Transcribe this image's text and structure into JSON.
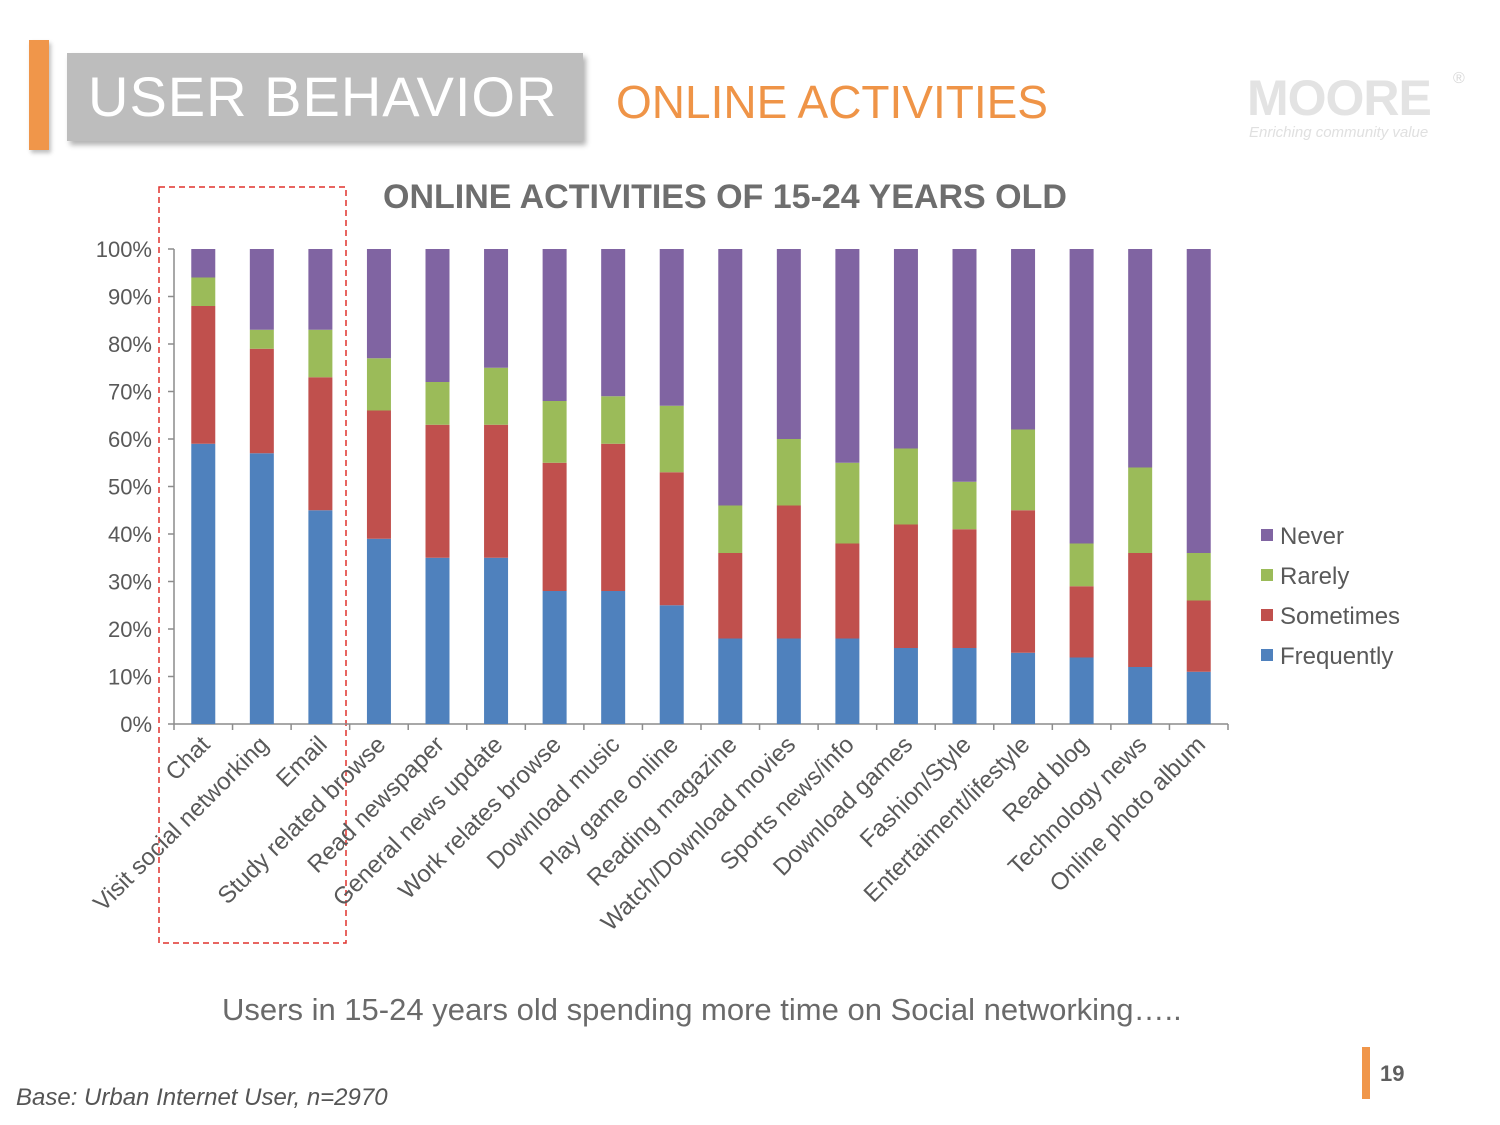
{
  "header": {
    "section_title": "USER BEHAVIOR",
    "subsection_title": "ONLINE ACTIVITIES"
  },
  "logo": {
    "word": "MOORE",
    "registered": "®",
    "tagline": "Enriching community value"
  },
  "colors": {
    "accent": "#f0964a",
    "frequently": "#4f81bd",
    "sometimes": "#c0504d",
    "rarely": "#9bbb59",
    "never": "#8064a2",
    "highlight": "#e0322d"
  },
  "chart_data": {
    "type": "bar",
    "stacked": true,
    "title": "ONLINE ACTIVITIES OF 15-24 YEARS OLD",
    "xlabel": "",
    "ylabel": "",
    "ylim": [
      0,
      100
    ],
    "yticks": [
      "0%",
      "10%",
      "20%",
      "30%",
      "40%",
      "50%",
      "60%",
      "70%",
      "80%",
      "90%",
      "100%"
    ],
    "legend_position": "right",
    "categories": [
      "Chat",
      "Visit social networking",
      "Email",
      "Study related browse",
      "Read newspaper",
      "General news update",
      "Work relates browse",
      "Download music",
      "Play game online",
      "Reading magazine",
      "Watch/Download movies",
      "Sports news/info",
      "Download games",
      "Fashion/Style",
      "Entertaiment/lifestyle",
      "Read blog",
      "Technology news",
      "Online photo album"
    ],
    "series": [
      {
        "name": "Frequently",
        "values": [
          59,
          57,
          45,
          39,
          35,
          35,
          28,
          28,
          25,
          18,
          18,
          18,
          16,
          16,
          15,
          14,
          12,
          11
        ]
      },
      {
        "name": "Sometimes",
        "values": [
          29,
          22,
          28,
          27,
          28,
          28,
          27,
          31,
          28,
          18,
          28,
          20,
          26,
          25,
          30,
          15,
          24,
          15
        ]
      },
      {
        "name": "Rarely",
        "values": [
          6,
          4,
          10,
          11,
          9,
          12,
          13,
          10,
          14,
          10,
          14,
          17,
          16,
          10,
          17,
          9,
          18,
          10
        ]
      },
      {
        "name": "Never",
        "values": [
          6,
          17,
          17,
          23,
          28,
          25,
          32,
          31,
          33,
          54,
          40,
          45,
          42,
          49,
          38,
          62,
          46,
          64
        ]
      }
    ],
    "legend": [
      "Never",
      "Rarely",
      "Sometimes",
      "Frequently"
    ],
    "highlighted_categories": [
      "Chat",
      "Visit social networking",
      "Email"
    ]
  },
  "caption": "Users in 15-24 years old spending more time on Social networking…..",
  "page_number": "19",
  "base_note": "Base: Urban Internet User, n=2970"
}
